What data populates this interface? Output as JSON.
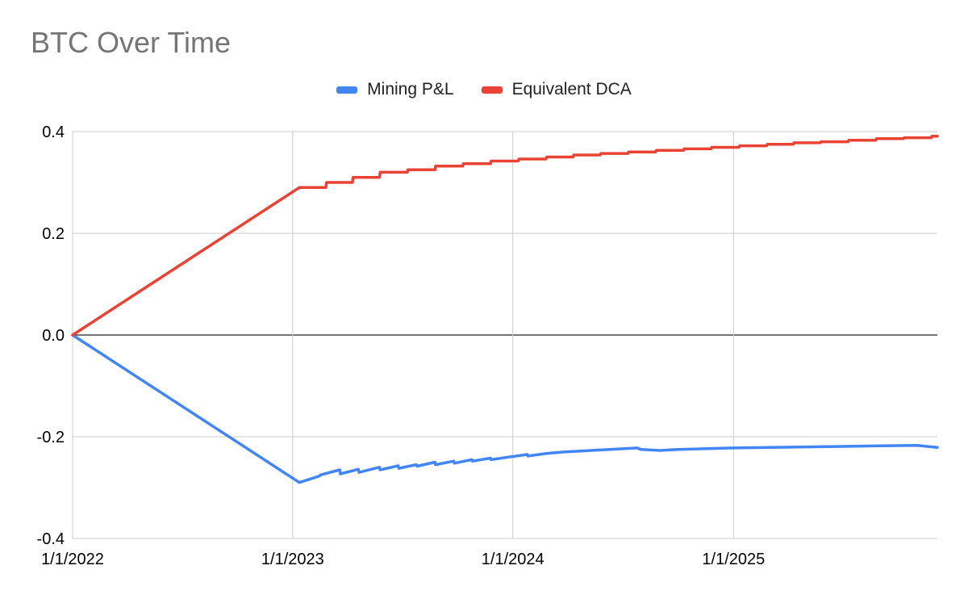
{
  "chart_data": {
    "type": "line",
    "title": "BTC Over Time",
    "xlabel": "",
    "ylabel": "",
    "ylim": [
      -0.4,
      0.4
    ],
    "y_ticks": [
      "0.4",
      "0.2",
      "0.0",
      "-0.2",
      "-0.4"
    ],
    "x_ticks": [
      "1/1/2022",
      "1/1/2023",
      "1/1/2024",
      "1/1/2025"
    ],
    "xlim": [
      "2022-01-01",
      "2025-12-05"
    ],
    "legend_position": "top-center",
    "grid": true,
    "series": [
      {
        "name": "Mining P&L",
        "color": "#4285f4",
        "points": [
          [
            "2022-01-01",
            0.0
          ],
          [
            "2023-01-12",
            -0.29
          ],
          [
            "2023-02-15",
            -0.277
          ],
          [
            "2023-02-16",
            -0.275
          ],
          [
            "2023-03-20",
            -0.265
          ],
          [
            "2023-03-21",
            -0.273
          ],
          [
            "2023-04-20",
            -0.264
          ],
          [
            "2023-04-21",
            -0.27
          ],
          [
            "2023-05-25",
            -0.26
          ],
          [
            "2023-05-26",
            -0.265
          ],
          [
            "2023-06-25",
            -0.257
          ],
          [
            "2023-06-26",
            -0.262
          ],
          [
            "2023-07-25",
            -0.255
          ],
          [
            "2023-07-26",
            -0.258
          ],
          [
            "2023-08-25",
            -0.25
          ],
          [
            "2023-08-26",
            -0.255
          ],
          [
            "2023-09-25",
            -0.248
          ],
          [
            "2023-09-26",
            -0.252
          ],
          [
            "2023-10-25",
            -0.245
          ],
          [
            "2023-10-26",
            -0.248
          ],
          [
            "2023-11-25",
            -0.242
          ],
          [
            "2023-11-26",
            -0.245
          ],
          [
            "2023-12-25",
            -0.24
          ],
          [
            "2024-01-25",
            -0.235
          ],
          [
            "2024-01-26",
            -0.238
          ],
          [
            "2024-02-25",
            -0.233
          ],
          [
            "2024-03-25",
            -0.23
          ],
          [
            "2024-04-25",
            -0.228
          ],
          [
            "2024-05-25",
            -0.226
          ],
          [
            "2024-06-25",
            -0.224
          ],
          [
            "2024-07-25",
            -0.222
          ],
          [
            "2024-08-01",
            -0.225
          ],
          [
            "2024-09-01",
            -0.227
          ],
          [
            "2024-10-01",
            -0.225
          ],
          [
            "2024-11-01",
            -0.224
          ],
          [
            "2024-12-01",
            -0.223
          ],
          [
            "2025-01-01",
            -0.222
          ],
          [
            "2025-03-01",
            -0.221
          ],
          [
            "2025-05-01",
            -0.22
          ],
          [
            "2025-07-01",
            -0.219
          ],
          [
            "2025-09-01",
            -0.218
          ],
          [
            "2025-11-01",
            -0.217
          ],
          [
            "2025-12-05",
            -0.221
          ]
        ]
      },
      {
        "name": "Equivalent DCA",
        "color": "#ea4335",
        "points": [
          [
            "2022-01-01",
            0.0
          ],
          [
            "2023-01-12",
            0.29
          ],
          [
            "2023-02-25",
            0.29
          ],
          [
            "2023-02-26",
            0.3
          ],
          [
            "2023-04-10",
            0.3
          ],
          [
            "2023-04-11",
            0.31
          ],
          [
            "2023-05-25",
            0.31
          ],
          [
            "2023-05-26",
            0.32
          ],
          [
            "2023-07-10",
            0.32
          ],
          [
            "2023-07-11",
            0.325
          ],
          [
            "2023-08-25",
            0.325
          ],
          [
            "2023-08-26",
            0.332
          ],
          [
            "2023-10-10",
            0.332
          ],
          [
            "2023-10-11",
            0.337
          ],
          [
            "2023-11-25",
            0.337
          ],
          [
            "2023-11-26",
            0.342
          ],
          [
            "2024-01-10",
            0.342
          ],
          [
            "2024-01-11",
            0.346
          ],
          [
            "2024-02-25",
            0.346
          ],
          [
            "2024-02-26",
            0.35
          ],
          [
            "2024-04-10",
            0.35
          ],
          [
            "2024-04-11",
            0.354
          ],
          [
            "2024-05-25",
            0.354
          ],
          [
            "2024-05-26",
            0.357
          ],
          [
            "2024-07-10",
            0.357
          ],
          [
            "2024-07-11",
            0.36
          ],
          [
            "2024-08-25",
            0.36
          ],
          [
            "2024-08-26",
            0.363
          ],
          [
            "2024-10-10",
            0.363
          ],
          [
            "2024-10-11",
            0.366
          ],
          [
            "2024-11-25",
            0.366
          ],
          [
            "2024-11-26",
            0.369
          ],
          [
            "2025-01-10",
            0.369
          ],
          [
            "2025-01-11",
            0.372
          ],
          [
            "2025-02-25",
            0.372
          ],
          [
            "2025-02-26",
            0.375
          ],
          [
            "2025-04-10",
            0.375
          ],
          [
            "2025-04-11",
            0.378
          ],
          [
            "2025-05-25",
            0.378
          ],
          [
            "2025-05-26",
            0.38
          ],
          [
            "2025-07-10",
            0.38
          ],
          [
            "2025-07-11",
            0.383
          ],
          [
            "2025-08-25",
            0.383
          ],
          [
            "2025-08-26",
            0.386
          ],
          [
            "2025-10-10",
            0.386
          ],
          [
            "2025-10-11",
            0.388
          ],
          [
            "2025-11-25",
            0.388
          ],
          [
            "2025-11-26",
            0.391
          ],
          [
            "2025-12-05",
            0.391
          ]
        ]
      }
    ]
  }
}
